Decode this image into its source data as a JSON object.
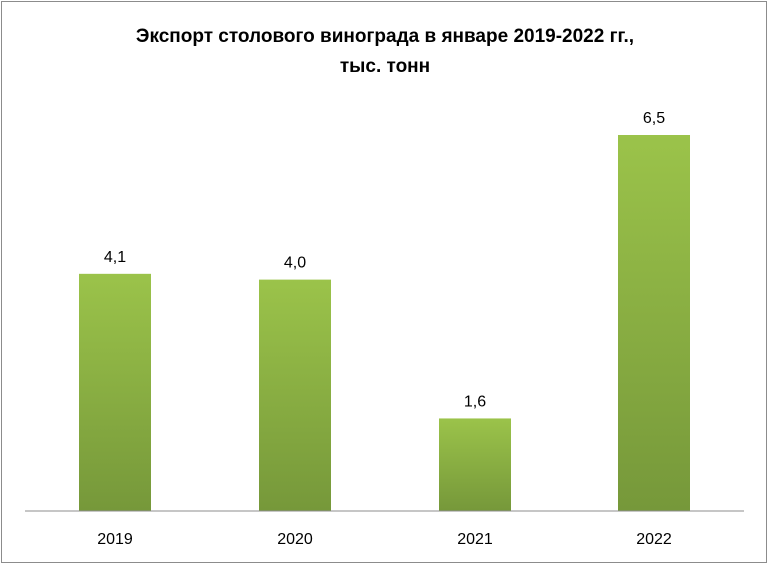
{
  "chart_data": {
    "type": "bar",
    "title_lines": [
      "Экспорт столового винограда в январе 2019-2022 гг.,",
      "тыс. тонн"
    ],
    "categories": [
      "2019",
      "2020",
      "2021",
      "2022"
    ],
    "values": [
      4.1,
      4.0,
      1.6,
      6.5
    ],
    "value_labels": [
      "4,1",
      "4,0",
      "1,6",
      "6,5"
    ],
    "ylim": [
      0,
      7
    ],
    "grid": false,
    "legend": "none",
    "colors": {
      "bar_top": "#9bc34a",
      "bar_bottom": "#76983a",
      "axis": "#8c8c8c"
    }
  }
}
